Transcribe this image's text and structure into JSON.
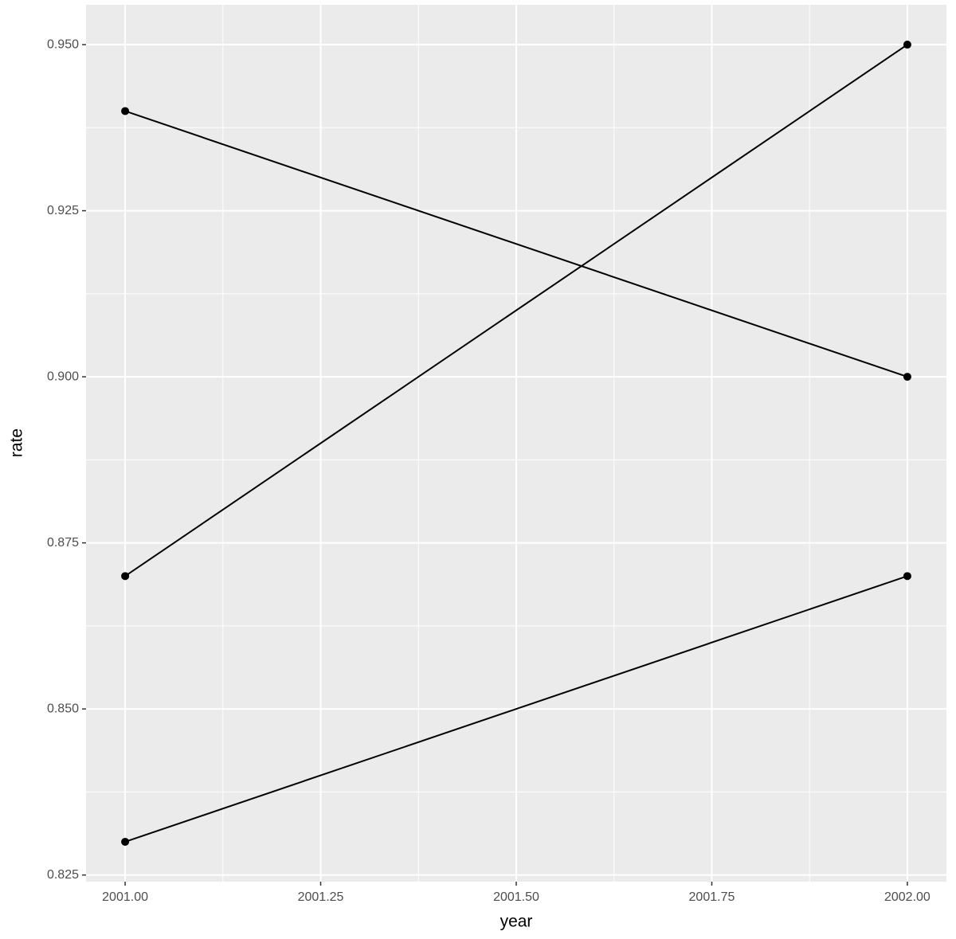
{
  "chart_data": {
    "type": "line",
    "x_label": "year",
    "y_label": "rate",
    "x": [
      2001,
      2002
    ],
    "series": [
      {
        "color": "#000000",
        "values": [
          0.94,
          0.9
        ]
      },
      {
        "color": "#000000",
        "values": [
          0.87,
          0.95
        ]
      },
      {
        "color": "#000000",
        "values": [
          0.83,
          0.87
        ]
      }
    ],
    "xlim": [
      2000.95,
      2002.05
    ],
    "ylim": [
      0.824,
      0.956
    ],
    "xticks": [
      {
        "value": 2001,
        "label": "2001.00"
      },
      {
        "value": 2001.25,
        "label": "2001.25"
      },
      {
        "value": 2001.5,
        "label": "2001.50"
      },
      {
        "value": 2001.75,
        "label": "2001.75"
      },
      {
        "value": 2002,
        "label": "2002.00"
      }
    ],
    "yticks": [
      {
        "value": 0.825,
        "label": "0.825"
      },
      {
        "value": 0.85,
        "label": "0.850"
      },
      {
        "value": 0.875,
        "label": "0.875"
      },
      {
        "value": 0.9,
        "label": "0.900"
      },
      {
        "value": 0.925,
        "label": "0.925"
      },
      {
        "value": 0.95,
        "label": "0.950"
      }
    ],
    "grid": true,
    "panel_color": "#ebebeb"
  }
}
